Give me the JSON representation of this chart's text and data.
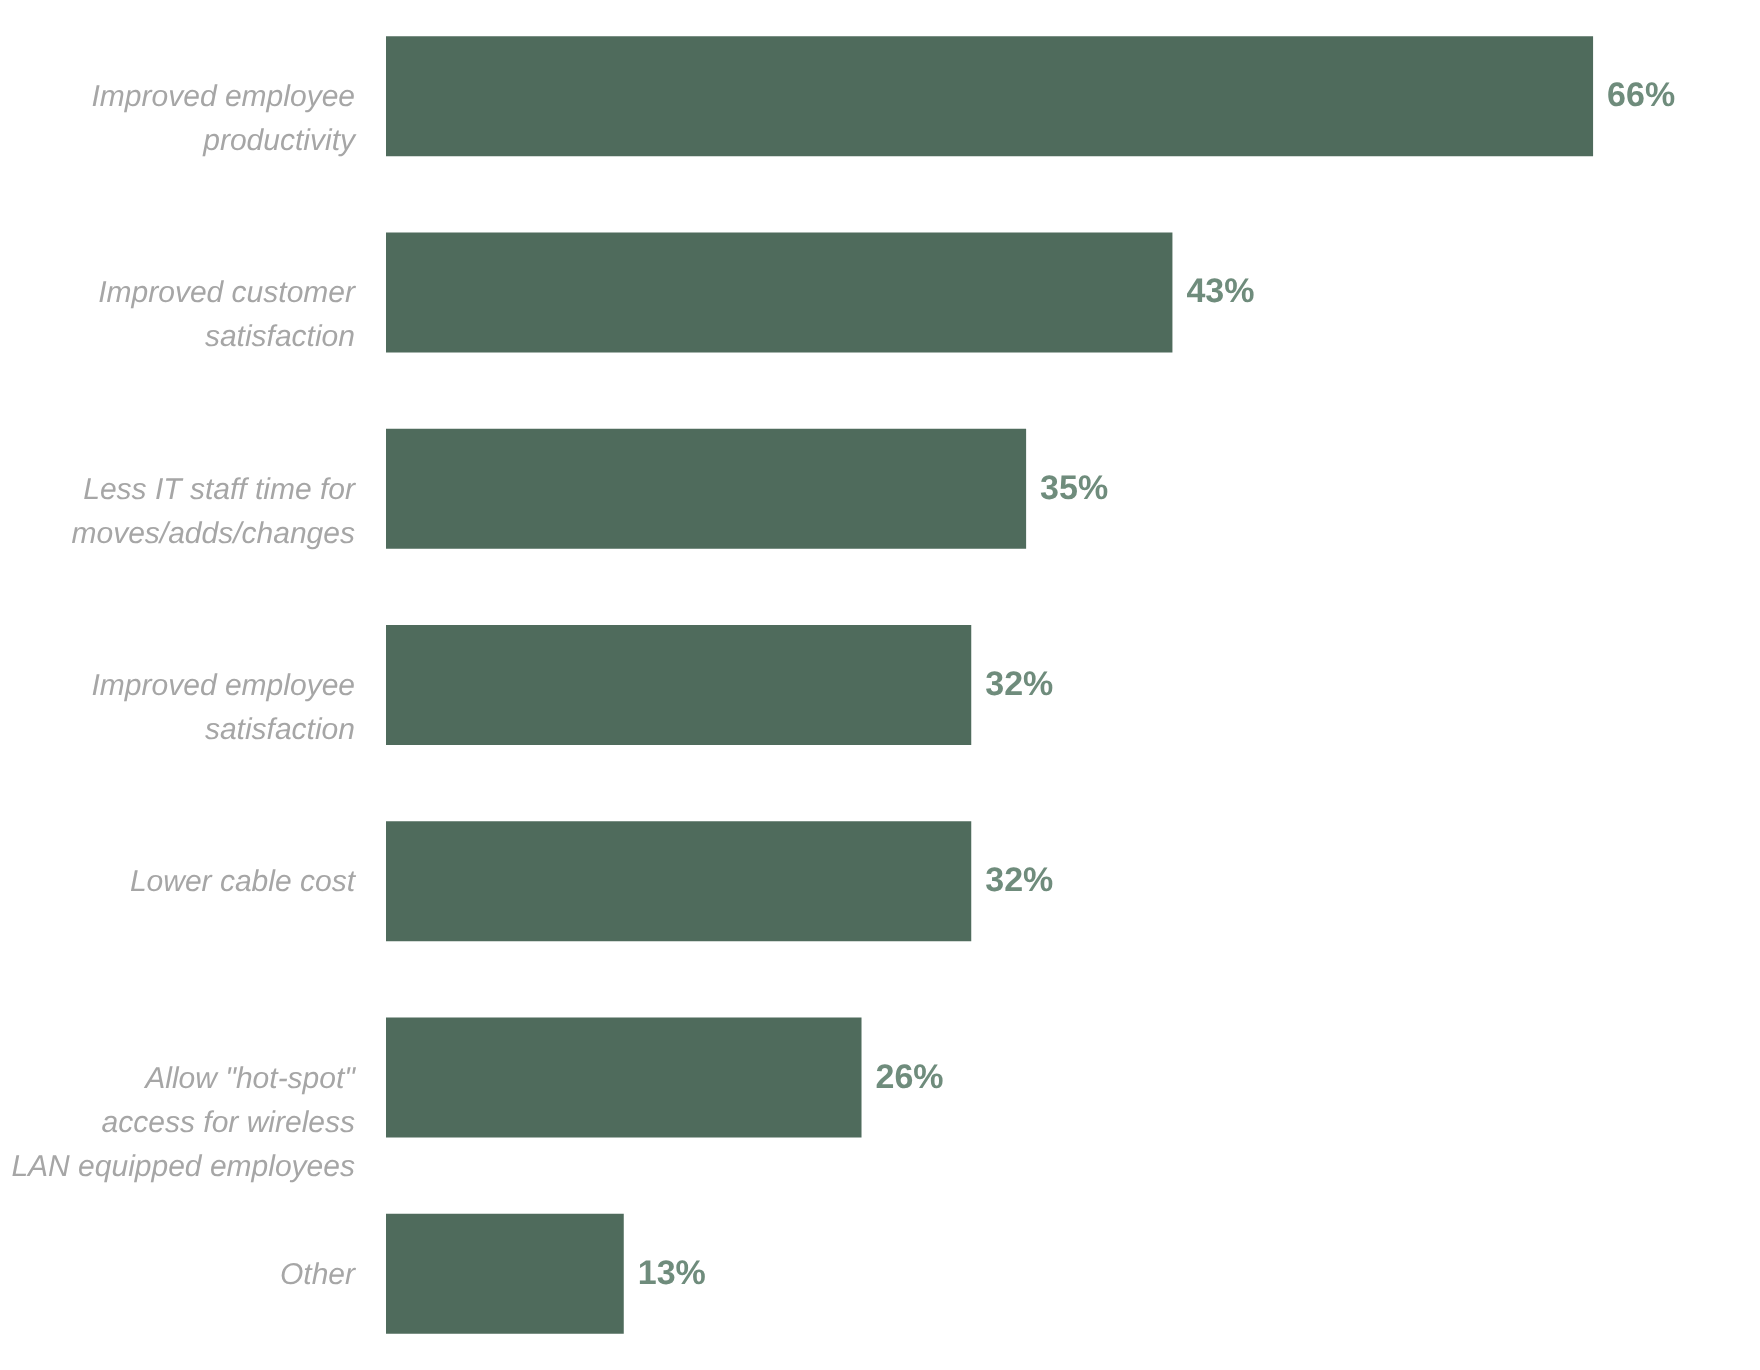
{
  "chart_data": {
    "type": "bar",
    "orientation": "horizontal",
    "categories": [
      "Improved employee productivity",
      "Improved customer satisfaction",
      "Less IT staff time for moves/adds/changes",
      "Improved employee satisfaction",
      "Lower cable cost",
      "Allow \"hot-spot\" access for wireless LAN equipped employees",
      "Other"
    ],
    "values": [
      66,
      43,
      35,
      32,
      32,
      26,
      13
    ],
    "value_labels": [
      "66%",
      "43%",
      "35%",
      "32%",
      "32%",
      "26%",
      "13%"
    ],
    "color": "#4f6b5c",
    "grid": false
  }
}
